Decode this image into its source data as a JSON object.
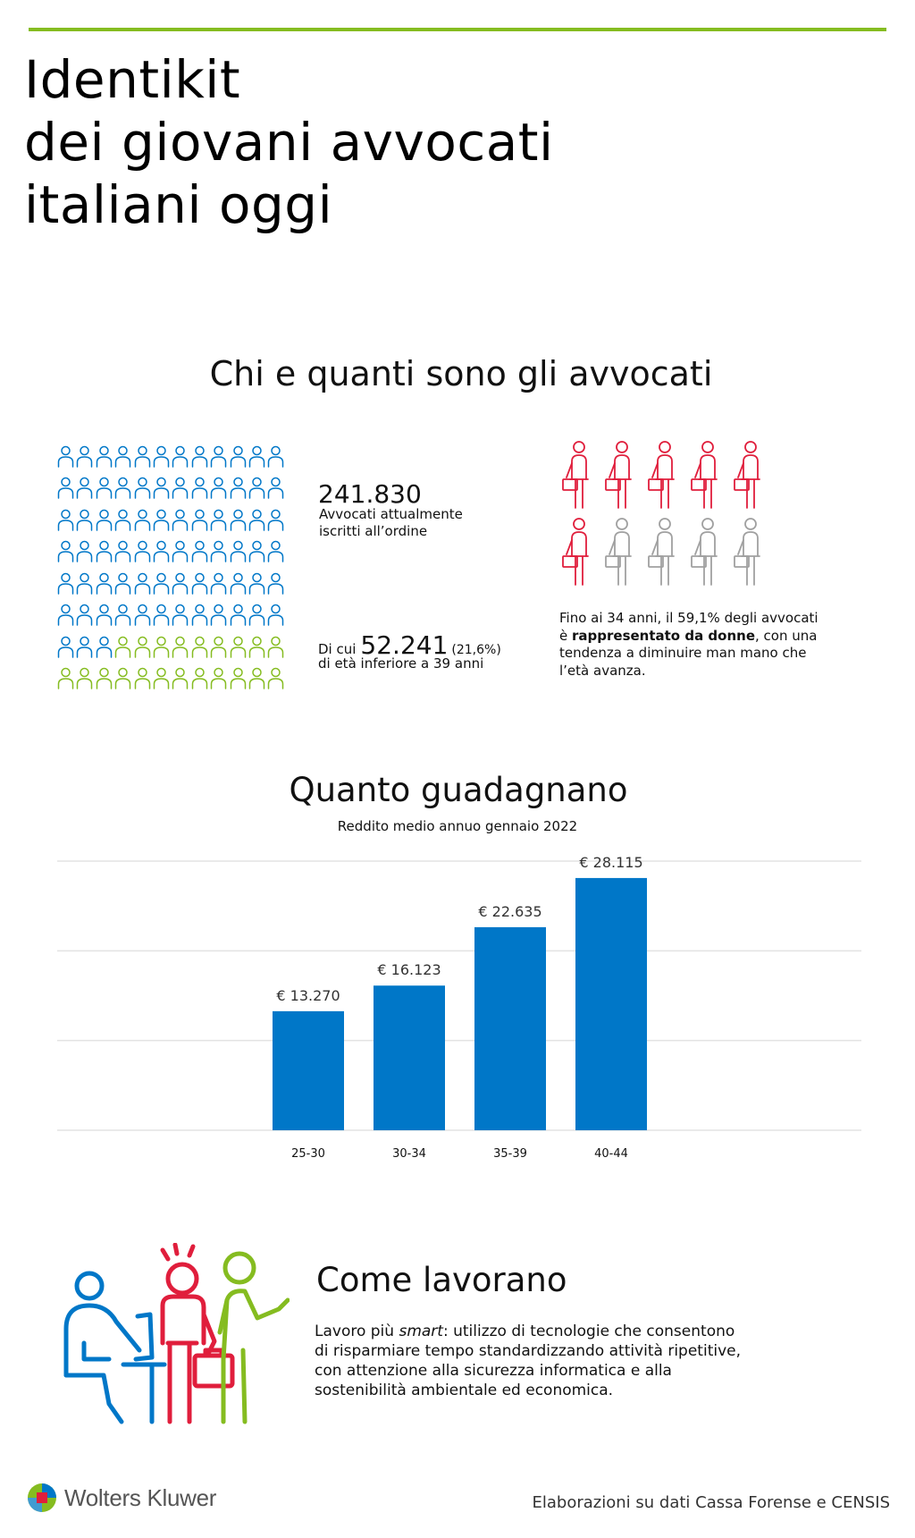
{
  "colors": {
    "accent_green": "#85bc20",
    "blue": "#0077c8",
    "red": "#e01e3c",
    "grey": "#a0a0a0"
  },
  "title": {
    "line1": "Identikit",
    "line2": "dei giovani avvocati",
    "line3": "italiani oggi"
  },
  "section1": {
    "title": "Chi e quanti sono gli avvocati",
    "total_value": "241.830",
    "total_label_line1": "Avvocati attualmente",
    "total_label_line2": "iscritti all’ordine",
    "young_prefix": "Di cui",
    "young_value": "52.241",
    "young_pct": "(21,6%)",
    "young_label": "di età inferiore a 39 anni",
    "crowd": {
      "rows": 8,
      "cols": 12,
      "icon": "person-outline-icon",
      "blue_count": 75,
      "green_count": 21
    },
    "women_grid": {
      "total": 10,
      "women": 6,
      "icon": "lawyer-with-briefcase-icon"
    },
    "women_note": {
      "part1": "Fino ai 34 anni, il 59,1% degli avvocati",
      "part2": "è ",
      "bold": "rappresentato da donne",
      "part3": ", con una tendenza a diminuire man mano che l’età avanza."
    }
  },
  "section2": {
    "title": "Quanto guadagnano",
    "subtitle": "Reddito medio annuo gennaio 2022"
  },
  "chart_data": {
    "type": "bar",
    "title": "Quanto guadagnano",
    "subtitle": "Reddito medio annuo gennaio 2022",
    "categories": [
      "25-30",
      "30-34",
      "35-39",
      "40-44"
    ],
    "values": [
      13270,
      16123,
      22635,
      28115
    ],
    "value_labels": [
      "€ 13.270",
      "€ 16.123",
      "€ 22.635",
      "€ 28.115"
    ],
    "ylim": [
      0,
      30000
    ],
    "gridlines": [
      0,
      10000,
      20000,
      30000
    ],
    "grid": true,
    "xlabel": "",
    "ylabel": ""
  },
  "section3": {
    "title": "Come lavorano",
    "text_part1": "Lavoro più ",
    "text_italic": "smart",
    "text_part2": ": utilizzo di tecnologie che consentono di risparmiare tempo standardizzando attività ripetitive, con attenzione alla sicurezza informatica e alla sostenibilità ambientale ed economica.",
    "illustration": "people-working-icon"
  },
  "footer": {
    "logo_icon": "wolters-kluwer-logo-icon",
    "brand": "Wolters Kluwer",
    "source": "Elaborazioni su dati Cassa Forense e CENSIS"
  }
}
